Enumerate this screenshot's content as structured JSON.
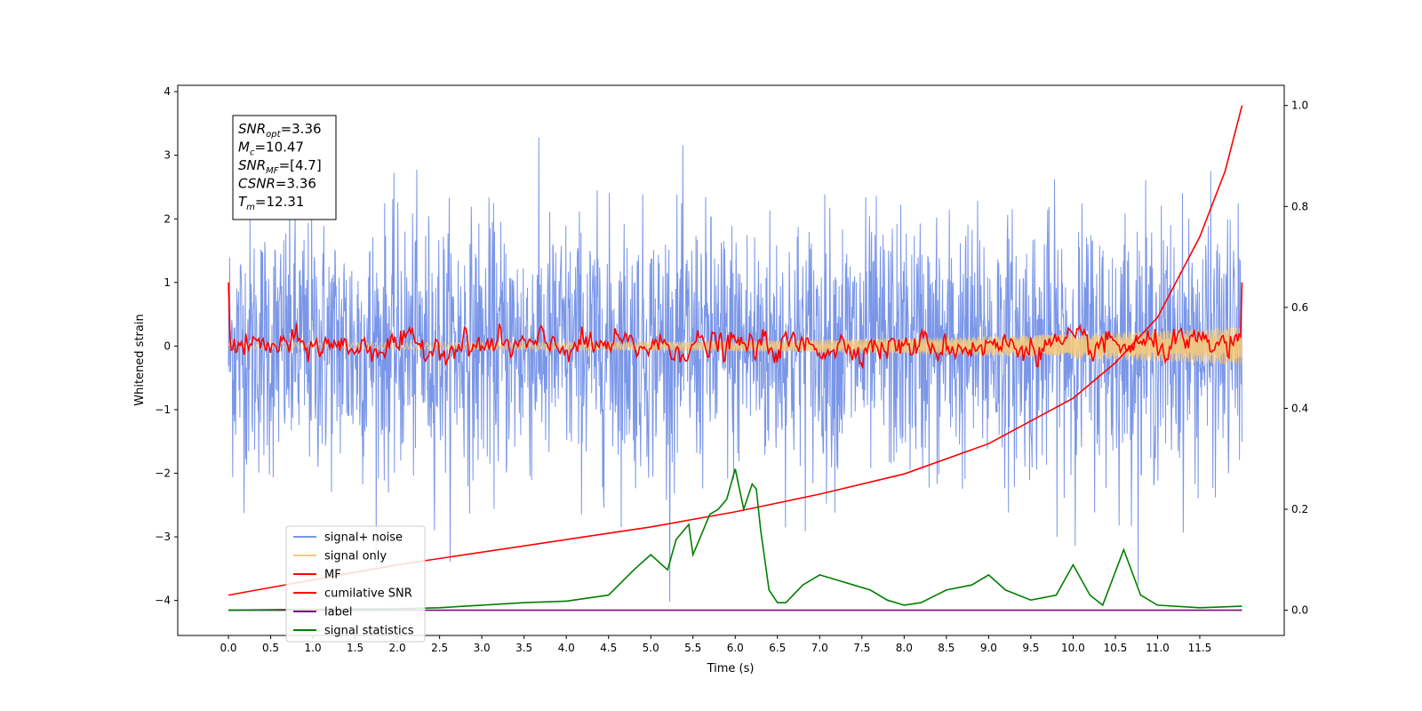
{
  "chart_data": {
    "type": "line",
    "xlabel": "Time (s)",
    "ylabel": "Whitened strain",
    "xlim": [
      -0.6,
      12.5
    ],
    "ylim": [
      -4.55,
      4.1
    ],
    "y2lim": [
      -0.05,
      1.04
    ],
    "x_ticks": [
      "0.0",
      "0.5",
      "1.0",
      "1.5",
      "2.0",
      "2.5",
      "3.0",
      "3.5",
      "4.0",
      "4.5",
      "5.0",
      "5.5",
      "6.0",
      "6.5",
      "7.0",
      "7.5",
      "8.0",
      "8.5",
      "9.0",
      "9.5",
      "10.0",
      "10.5",
      "11.0",
      "11.5"
    ],
    "y_ticks": [
      "4",
      "3",
      "2",
      "1",
      "0",
      "−1",
      "−2",
      "−3",
      "−4"
    ],
    "y2_ticks": [
      "1.0",
      "0.8",
      "0.6",
      "0.4",
      "0.2",
      "0.0"
    ],
    "annotation": [
      {
        "name": "SNR",
        "sub": "opt",
        "value": "=3.36"
      },
      {
        "name": "M",
        "sub": "c",
        "value": "=10.47"
      },
      {
        "name": "SNR",
        "sub": "MF",
        "value": "=[4.7]"
      },
      {
        "name": "CSNR",
        "sub": "",
        "value": "=3.36"
      },
      {
        "name": "T",
        "sub": "m",
        "value": "=12.31"
      }
    ],
    "legend_position": "lower-left",
    "series": [
      {
        "name": "signal+ noise",
        "color": "#7a96e8",
        "axis": "left",
        "style": "noise",
        "amplitude_range": [
          -4.1,
          3.7
        ]
      },
      {
        "name": "signal only",
        "color": "#f5c97a",
        "axis": "left",
        "style": "chirp",
        "amplitude_range": [
          -0.3,
          0.3
        ]
      },
      {
        "name": "MF",
        "color": "#ff0000",
        "axis": "left",
        "style": "noise",
        "amplitude_range": [
          -0.35,
          1.0
        ]
      },
      {
        "name": "cumilative SNR",
        "color": "#ff0000",
        "axis": "right",
        "x": [
          0.0,
          1.0,
          2.0,
          3.0,
          4.0,
          5.0,
          6.0,
          7.0,
          8.0,
          9.0,
          10.0,
          10.5,
          11.0,
          11.5,
          11.8,
          12.0
        ],
        "y": [
          0.03,
          0.06,
          0.09,
          0.115,
          0.14,
          0.165,
          0.195,
          0.23,
          0.27,
          0.33,
          0.42,
          0.49,
          0.58,
          0.74,
          0.87,
          1.0
        ]
      },
      {
        "name": "label",
        "color": "#7b0a7b",
        "axis": "right",
        "x": [
          0.0,
          12.0
        ],
        "y": [
          0.0,
          0.0
        ]
      },
      {
        "name": "signal statistics",
        "color": "#008000",
        "axis": "right",
        "x": [
          0.0,
          1.0,
          2.0,
          2.5,
          3.0,
          3.5,
          4.0,
          4.5,
          4.8,
          5.0,
          5.2,
          5.3,
          5.45,
          5.5,
          5.55,
          5.7,
          5.8,
          5.9,
          6.0,
          6.1,
          6.2,
          6.25,
          6.3,
          6.4,
          6.5,
          6.6,
          6.8,
          7.0,
          7.2,
          7.4,
          7.6,
          7.8,
          8.0,
          8.2,
          8.5,
          8.8,
          9.0,
          9.2,
          9.5,
          9.8,
          10.0,
          10.2,
          10.35,
          10.6,
          10.8,
          11.0,
          11.5,
          12.0
        ],
        "y": [
          0.0,
          0.002,
          0.003,
          0.005,
          0.01,
          0.015,
          0.018,
          0.03,
          0.08,
          0.11,
          0.08,
          0.14,
          0.17,
          0.11,
          0.13,
          0.19,
          0.2,
          0.22,
          0.28,
          0.2,
          0.25,
          0.24,
          0.16,
          0.04,
          0.015,
          0.015,
          0.05,
          0.07,
          0.06,
          0.05,
          0.04,
          0.02,
          0.01,
          0.015,
          0.04,
          0.05,
          0.07,
          0.04,
          0.02,
          0.03,
          0.09,
          0.03,
          0.01,
          0.12,
          0.03,
          0.01,
          0.005,
          0.008
        ]
      }
    ]
  }
}
